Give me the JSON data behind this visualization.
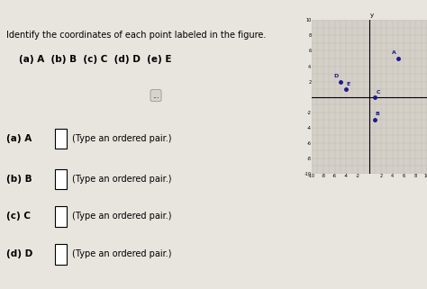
{
  "title": "Identify the coordinates of each point labeled in the figure.",
  "subtitle": "(a) A  (b) B  (c) C  (d) D  (e) E",
  "bg_color": "#e8e4de",
  "top_banner_color": "#b03040",
  "grid_bg": "#d4d0c8",
  "points": {
    "A": [
      5,
      5
    ],
    "B": [
      1,
      -3
    ],
    "C": [
      1,
      0
    ],
    "D": [
      -5,
      2
    ],
    "E": [
      -4,
      1
    ]
  },
  "point_color": "#1a1a8c",
  "axis_range": [
    -10,
    10
  ],
  "grid_color": "#b8b4ac",
  "answer_labels": [
    "(a) A",
    "(b) B",
    "(c) C",
    "(d) D"
  ],
  "answer_text": "(Type an ordered pair.)",
  "dots_button": "..."
}
